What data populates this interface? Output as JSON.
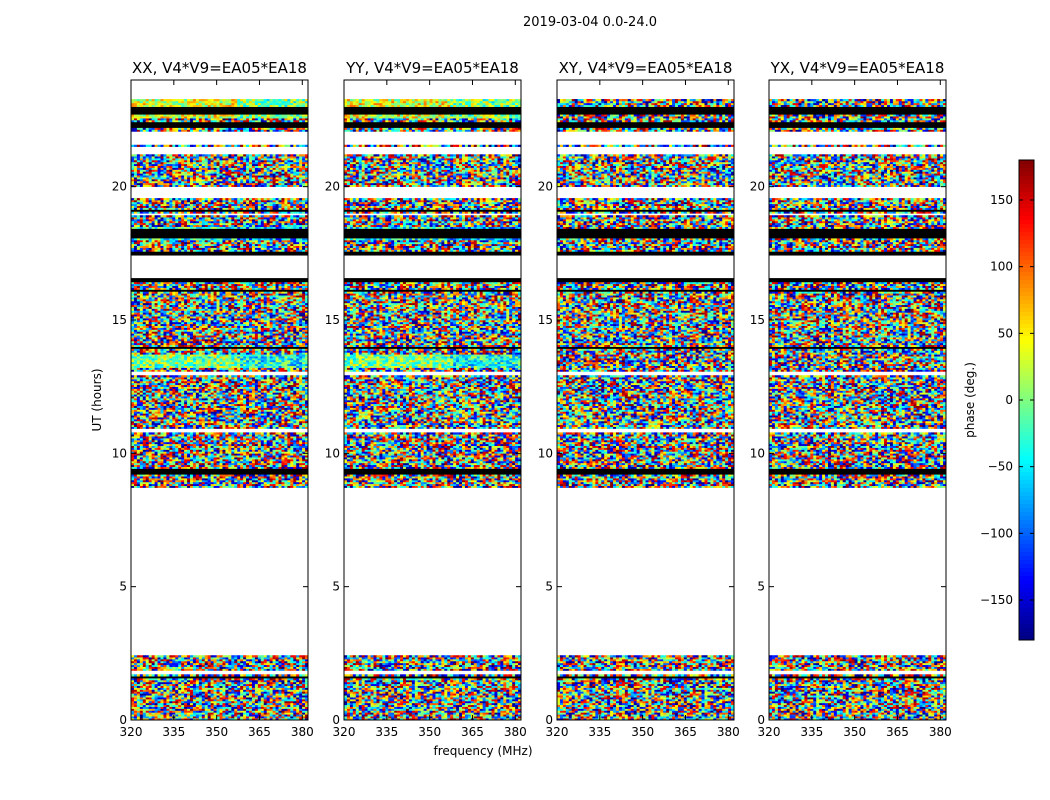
{
  "chart_data": {
    "type": "heatmap",
    "suptitle": "2019-03-04 0.0-24.0",
    "xlabel": "frequency (MHz)",
    "ylabel": "UT (hours)",
    "xlim": [
      320,
      382
    ],
    "ylim": [
      0,
      24
    ],
    "xticks": [
      320,
      335,
      350,
      365,
      380
    ],
    "yticks": [
      0,
      5,
      10,
      15,
      20
    ],
    "panels": [
      {
        "title": "XX, V4*V9=EA05*EA18",
        "polarization": "XX"
      },
      {
        "title": "YY, V4*V9=EA05*EA18",
        "polarization": "YY"
      },
      {
        "title": "XY, V4*V9=EA05*EA18",
        "polarization": "XY"
      },
      {
        "title": "YX, V4*V9=EA05*EA18",
        "polarization": "YX"
      }
    ],
    "colorbar": {
      "label": "phase (deg.)",
      "colormap": "jet",
      "range": [
        -180,
        180
      ],
      "ticks": [
        -150,
        -100,
        -50,
        0,
        50,
        100,
        150
      ],
      "tick_labels": [
        "−150",
        "−100",
        "−50",
        "0",
        "50",
        "100",
        "150"
      ]
    },
    "data_time_ranges_hours": [
      [
        0.0,
        2.4
      ],
      [
        8.7,
        23.3
      ]
    ],
    "empty_time_range_hours": [
      2.4,
      8.7
    ],
    "flagged_bands_hours": [
      [
        1.55,
        1.65
      ],
      [
        1.9,
        1.95
      ],
      [
        9.25,
        9.45
      ],
      [
        13.95,
        14.0
      ],
      [
        16.05,
        16.15
      ],
      [
        16.45,
        16.55
      ],
      [
        17.45,
        17.6
      ],
      [
        18.1,
        18.4
      ],
      [
        19.05,
        19.15
      ],
      [
        22.2,
        22.45
      ],
      [
        22.75,
        23.0
      ]
    ],
    "blank_bands_hours": [
      [
        1.7,
        1.85
      ],
      [
        10.8,
        10.95
      ],
      [
        12.9,
        13.05
      ],
      [
        16.6,
        17.4
      ],
      [
        18.9,
        19.0
      ],
      [
        19.6,
        20.0
      ],
      [
        21.2,
        21.5
      ],
      [
        21.6,
        22.1
      ]
    ]
  }
}
